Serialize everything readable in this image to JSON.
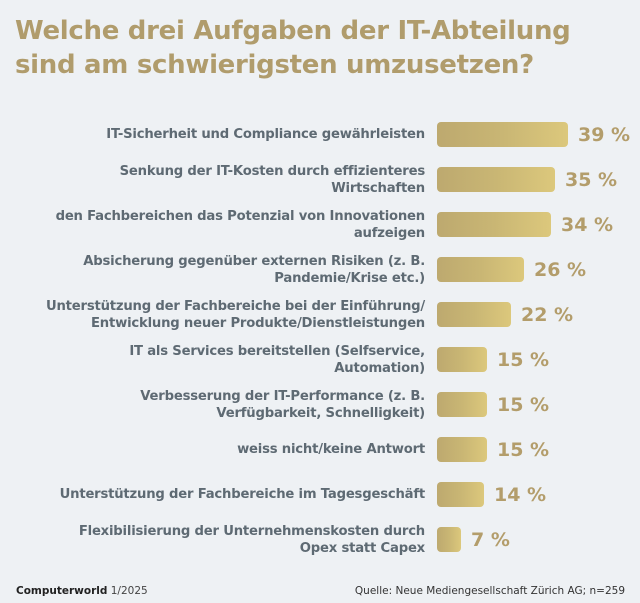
{
  "chart_data": {
    "type": "bar",
    "orientation": "horizontal",
    "title": "Welche drei Aufgaben der IT-Abteilung sind am schwierigsten umzusetzen?",
    "title_lines": [
      "Welche drei Aufgaben der IT-Abteilung",
      "sind am schwierigsten umzusetzen?"
    ],
    "xlabel": "",
    "ylabel": "",
    "unit": "%",
    "xlim": [
      0,
      39
    ],
    "grid": false,
    "legend": "none",
    "categories": [
      "IT-Sicherheit und Compliance gewährleisten",
      "Senkung der IT-Kosten durch effizienteres Wirtschaften",
      "den Fachbereichen das Potenzial von Innovationen aufzeigen",
      "Absicherung gegenüber externen Risiken (z. B. Pandemie/Krise etc.)",
      "Unterstützung der Fachbereiche bei der Einführung/ Entwicklung neuer Produkte/Dienstleistungen",
      "IT als Services bereitstellen (Selfservice, Automation)",
      "Verbesserung der IT-Performance (z. B. Verfügbarkeit, Schnelligkeit)",
      "weiss nicht/keine Antwort",
      "Unterstützung der Fachbereiche im Tagesgeschäft",
      "Flexibilisierung der Unternehmenskosten durch Opex statt Capex"
    ],
    "category_lines": [
      [
        "IT-Sicherheit und Compliance gewährleisten"
      ],
      [
        "Senkung der IT-Kosten durch effizienteres",
        "Wirtschaften"
      ],
      [
        "den Fachbereichen das Potenzial von Innovationen",
        "aufzeigen"
      ],
      [
        "Absicherung gegenüber externen Risiken (z. B.",
        "Pandemie/Krise etc.)"
      ],
      [
        "Unterstützung der Fachbereiche bei der Einführung/",
        "Entwicklung neuer Produkte/Dienstleistungen"
      ],
      [
        "IT als Services bereitstellen (Selfservice,",
        "Automation)"
      ],
      [
        "Verbesserung der IT-Performance (z. B.",
        "Verfügbarkeit, Schnelligkeit)"
      ],
      [
        "weiss nicht/keine Antwort"
      ],
      [
        "Unterstützung der Fachbereiche im Tagesgeschäft"
      ],
      [
        "Flexibilisierung der Unternehmenskosten durch",
        "Opex statt Capex"
      ]
    ],
    "values": [
      39,
      35,
      34,
      26,
      22,
      15,
      15,
      15,
      14,
      7
    ],
    "value_labels": [
      "39 %",
      "35 %",
      "34 %",
      "26 %",
      "22 %",
      "15 %",
      "15 %",
      "15 %",
      "14 %",
      "7 %"
    ],
    "colors": {
      "bar_start": "#bda96f",
      "bar_end": "#dcc87c",
      "value_text": "#b39d6b",
      "title_text": "#b09c6c",
      "label_text": "#5e6a73",
      "background": "#eef1f4"
    }
  },
  "footer": {
    "brand": "Computerworld",
    "issue": "1/2025",
    "source": "Quelle: Neue Mediengesellschaft Zürich AG; n=259"
  }
}
